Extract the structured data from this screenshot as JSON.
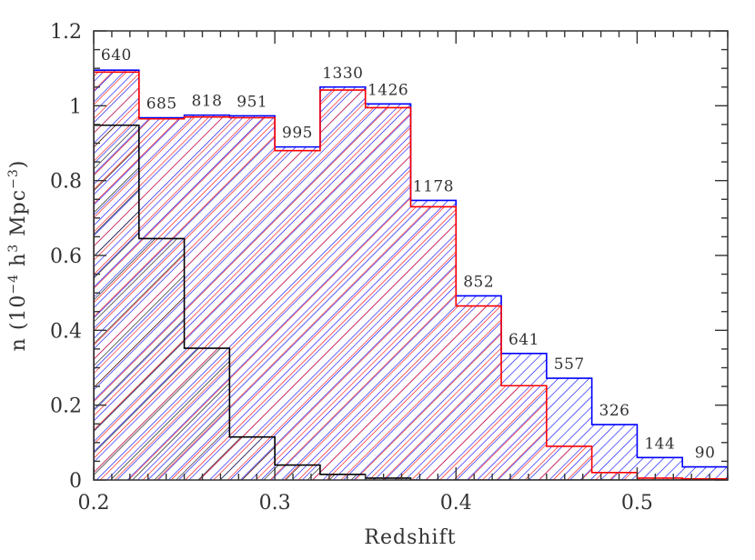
{
  "chart_data": {
    "type": "histogram",
    "title": "",
    "xlabel": "Redshift",
    "ylabel_parts": [
      "n (10",
      "−4",
      " h",
      "3",
      " Mpc",
      "−3",
      ")"
    ],
    "xlim": [
      0.2,
      0.55
    ],
    "ylim": [
      0,
      1.2
    ],
    "x_ticks": [
      "0.2",
      "0.3",
      "0.4",
      "0.5"
    ],
    "y_ticks": [
      "0",
      "0.2",
      "0.4",
      "0.6",
      "0.8",
      "1",
      "1.2"
    ],
    "bin_edges": [
      0.2,
      0.225,
      0.25,
      0.275,
      0.3,
      0.325,
      0.35,
      0.375,
      0.4,
      0.425,
      0.45,
      0.475,
      0.5,
      0.525,
      0.55
    ],
    "series": [
      {
        "color": "#0000ff",
        "hatch": "right-diagonal-dense",
        "values": [
          1.095,
          0.968,
          0.975,
          0.973,
          0.89,
          1.05,
          1.005,
          0.747,
          0.492,
          0.338,
          0.272,
          0.148,
          0.06,
          0.035
        ]
      },
      {
        "color": "#ff0000",
        "hatch": "right-diagonal",
        "values": [
          1.09,
          0.965,
          0.97,
          0.968,
          0.88,
          1.042,
          0.995,
          0.73,
          0.465,
          0.252,
          0.09,
          0.02,
          0.005,
          0.003
        ]
      },
      {
        "color": "#000000",
        "hatch": "right-diagonal-wide",
        "values": [
          0.948,
          0.645,
          0.352,
          0.115,
          0.04,
          0.015,
          0.005,
          0.0,
          0.0,
          0.0,
          0.0,
          0.0,
          0.0,
          0.0
        ]
      }
    ],
    "bin_labels": [
      "640",
      "685",
      "818",
      "951",
      "995",
      "1330",
      "1426",
      "1178",
      "852",
      "641",
      "557",
      "326",
      "144",
      "90"
    ],
    "colors": {
      "blue": "#0000ff",
      "red": "#ff0000",
      "black": "#000000",
      "axis": "#333333"
    }
  }
}
